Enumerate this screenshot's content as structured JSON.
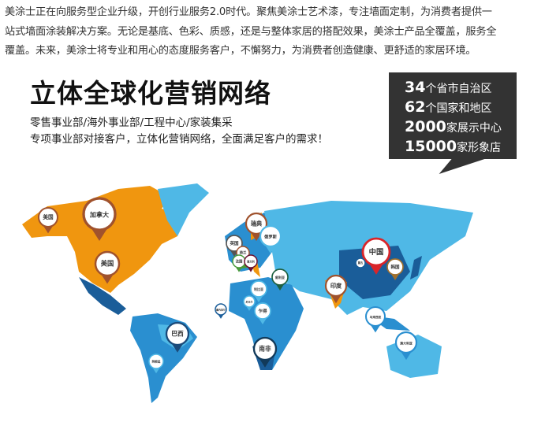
{
  "intro": {
    "lines": [
      "美涂士正在向服务型企业升级，开创行业服务2.0时代。聚焦美涂士艺术漆，专注墙面定制，为消费者提供一",
      "站式墙面涂装解决方案。无论是基底、色彩、质感，还是与整体家居的搭配效果，美涂士产品全覆盖，服务全",
      "覆盖。未来，美涂士将专业和用心的态度服务客户，不懈努力，为消费者创造健康、更舒适的家居环境。"
    ]
  },
  "banner": {
    "title": "立体全球化营销网络",
    "subtitle_lines": [
      "零售事业部/海外事业部/工程中心/家装集采",
      "专项事业部对接客户，立体化营销网络，全面满足客户的需求！"
    ],
    "stats": [
      {
        "num": "34",
        "label": "个省市自治区"
      },
      {
        "num": "62",
        "label": "个国家和地区"
      },
      {
        "num": "2000",
        "label": "家展示中心"
      },
      {
        "num": "15000",
        "label": "家形象店"
      }
    ]
  },
  "map": {
    "colors": {
      "north_america": "#f0960f",
      "light_blue": "#4fb8e6",
      "mid_blue": "#2a8fd0",
      "dark_blue": "#1a5d99",
      "china_pin": "#d9252a",
      "brown_pin": "#a0522d"
    },
    "pins": [
      {
        "label": "美国",
        "color": "#a0522d"
      },
      {
        "label": "加拿大",
        "color": "#a0522d"
      },
      {
        "label": "美国",
        "color": "#a0522d"
      },
      {
        "label": "瑞典",
        "color": "#a0522d"
      },
      {
        "label": "英国",
        "color": "#555555"
      },
      {
        "label": "荷兰",
        "color": "#a0522d"
      },
      {
        "label": "法国",
        "color": "#4a9a3a"
      },
      {
        "label": "意大利",
        "color": "#6a1030"
      },
      {
        "label": "俄罗斯",
        "color": "#4fb8e6"
      },
      {
        "label": "叙利亚",
        "color": "#1e6040"
      },
      {
        "label": "利比亚",
        "color": "#4fb8e6"
      },
      {
        "label": "尼日尔",
        "color": "#4fb8e6"
      },
      {
        "label": "乍得",
        "color": "#4fb8e6"
      },
      {
        "label": "塞内加尔",
        "color": "#1a5d99"
      },
      {
        "label": "中国",
        "color": "#d9252a"
      },
      {
        "label": "蒙古",
        "color": "#1a5d99"
      },
      {
        "label": "韩国",
        "color": "#a0702d"
      },
      {
        "label": "印度",
        "color": "#a0522d"
      },
      {
        "label": "马来西亚",
        "color": "#2a8fd0"
      },
      {
        "label": "澳大利亚",
        "color": "#2a8fd0"
      },
      {
        "label": "南非",
        "color": "#123a5a"
      },
      {
        "label": "巴西",
        "color": "#1a4a7a"
      },
      {
        "label": "阿根廷",
        "color": "#4fb8e6"
      }
    ]
  }
}
